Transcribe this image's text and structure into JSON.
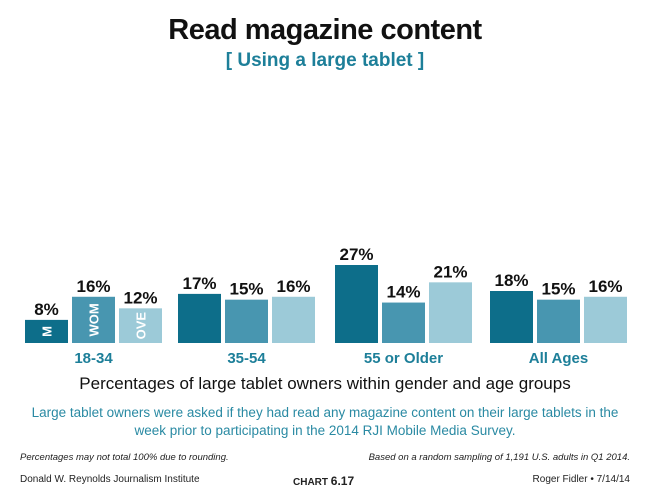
{
  "chart_data": {
    "type": "bar",
    "title": "Read magazine content",
    "subtitle": "[ Using a large tablet ]",
    "categories": [
      "18-34",
      "35-54",
      "55 or Older",
      "All Ages"
    ],
    "series": [
      {
        "name": "M",
        "color": "#0d6e8a",
        "values": [
          8,
          17,
          27,
          18
        ]
      },
      {
        "name": "WOM",
        "color": "#4896b0",
        "values": [
          16,
          15,
          14,
          15
        ]
      },
      {
        "name": "OVE",
        "color": "#9ccad8",
        "values": [
          12,
          16,
          21,
          16
        ]
      }
    ],
    "value_suffix": "%",
    "ylim": [
      0,
      30
    ],
    "grid": false,
    "xlabel": "Percentages of large tablet owners within gender and age groups"
  },
  "description": "Large tablet owners were asked if they had read any magazine content on their large tablets in the week prior to participating in the 2014 RJI Mobile Media Survey.",
  "notes": {
    "left": "Percentages may not total 100% due to rounding.",
    "right": "Based on a random sampling of 1,191 U.S. adults in Q1 2014."
  },
  "footer": {
    "left": "Donald W. Reynolds Journalism Institute",
    "chart_label": "CHART",
    "chart_number": "6.17",
    "right": "Roger Fidler • 7/14/14"
  }
}
